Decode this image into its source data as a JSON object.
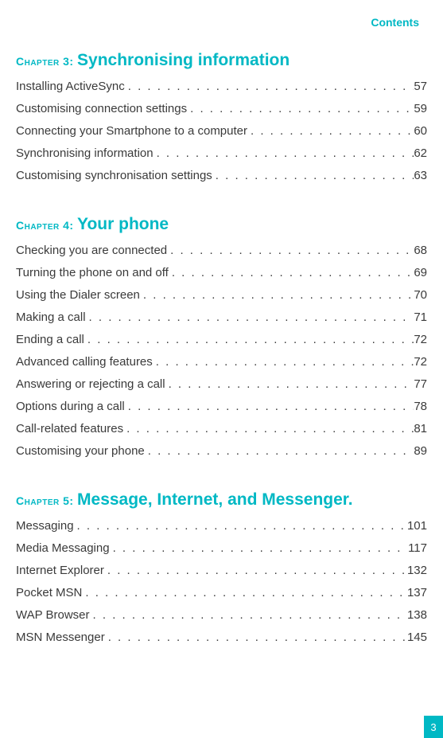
{
  "header": {
    "label": "Contents"
  },
  "page_number": "3",
  "colors": {
    "accent": "#00b8c4",
    "text": "#3a3a3a",
    "background": "#ffffff",
    "badge_text": "#ffffff"
  },
  "typography": {
    "body_fontsize": 15,
    "chapter_title_fontsize": 21,
    "chapter_prefix_fontsize": 14,
    "header_fontsize": 14,
    "font_family": "Verdana"
  },
  "chapters": [
    {
      "prefix": "Chapter  3:",
      "title": "Synchronising information",
      "entries": [
        {
          "label": "Installing ActiveSync ",
          "page": "57"
        },
        {
          "label": "Customising connection settings ",
          "page": "59"
        },
        {
          "label": "Connecting your Smartphone to a computer",
          "page": "60"
        },
        {
          "label": "Synchronising information  ",
          "page": "62"
        },
        {
          "label": "Customising synchronisation settings  ",
          "page": "63"
        }
      ]
    },
    {
      "prefix": "Chapter  4:",
      "title": "Your phone",
      "entries": [
        {
          "label": "Checking you are connected ",
          "page": "68"
        },
        {
          "label": "Turning the phone on and off ",
          "page": "69"
        },
        {
          "label": "Using the Dialer screen  ",
          "page": "70"
        },
        {
          "label": "Making a call  ",
          "page": "71"
        },
        {
          "label": "Ending a call",
          "page": "72"
        },
        {
          "label": "Advanced calling features",
          "page": "72"
        },
        {
          "label": "Answering or rejecting a call",
          "page": "77"
        },
        {
          "label": "Options during a call ",
          "page": "78"
        },
        {
          "label": "Call-related features  ",
          "page": "81"
        },
        {
          "label": "Customising your phone",
          "page": "89"
        }
      ]
    },
    {
      "prefix": "Chapter  5:",
      "title": "Message, Internet, and Messenger.",
      "entries": [
        {
          "label": "Messaging  ",
          "page": "101"
        },
        {
          "label": "Media Messaging ",
          "page": "117"
        },
        {
          "label": "Internet Explorer",
          "page": "132"
        },
        {
          "label": "Pocket MSN  ",
          "page": "137"
        },
        {
          "label": "WAP Browser  ",
          "page": "138"
        },
        {
          "label": "MSN Messenger  ",
          "page": "145"
        }
      ]
    }
  ]
}
